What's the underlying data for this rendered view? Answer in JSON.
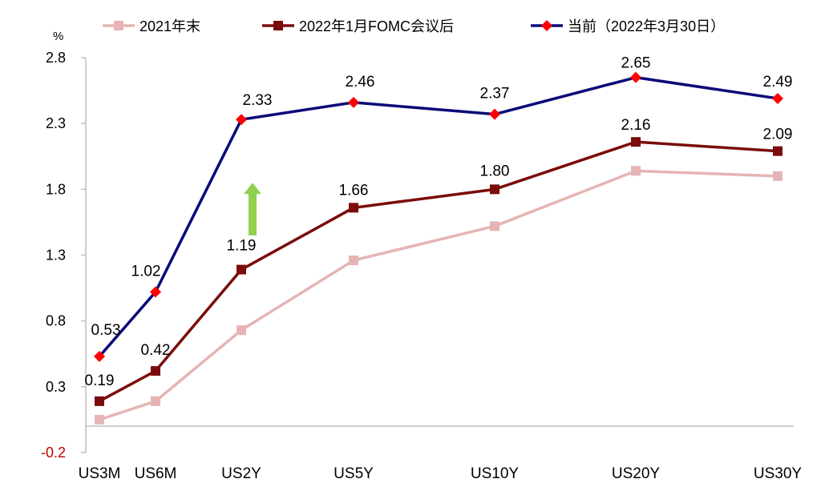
{
  "chart_data": {
    "type": "line",
    "title": "",
    "xlabel": "",
    "ylabel": "%",
    "ylim": [
      -0.2,
      2.8
    ],
    "yticks": [
      "2.8",
      "2.3",
      "1.8",
      "1.3",
      "0.8",
      "0.3",
      "-0.2"
    ],
    "categories": [
      "US3M",
      "US6M",
      "US2Y",
      "US5Y",
      "US10Y",
      "US20Y",
      "US30Y"
    ],
    "legend_position": "top",
    "grid": false,
    "series": [
      {
        "name": "2021年末",
        "color": "#e6b4b4",
        "marker": "square",
        "values": [
          0.05,
          0.19,
          0.73,
          1.26,
          1.52,
          1.94,
          1.9
        ],
        "labels": [
          "",
          "",
          "",
          "",
          "",
          "",
          ""
        ]
      },
      {
        "name": "2022年1月FOMC会议后",
        "color": "#7b0c0c",
        "marker": "square",
        "values": [
          0.19,
          0.42,
          1.19,
          1.66,
          1.8,
          2.16,
          2.09
        ],
        "labels": [
          "0.19",
          "0.42",
          "1.19",
          "1.66",
          "1.80",
          "2.16",
          "2.09"
        ]
      },
      {
        "name": "当前（2022年3月30日）",
        "color": "#0a0a78",
        "marker": "diamond",
        "marker_color": "#ff0000",
        "values": [
          0.53,
          1.02,
          2.33,
          2.46,
          2.37,
          2.65,
          2.49
        ],
        "labels": [
          "0.53",
          "1.02",
          "2.33",
          "2.46",
          "2.37",
          "2.65",
          "2.49"
        ]
      }
    ],
    "annotations": [
      {
        "type": "arrow-up",
        "color": "#92d050",
        "category": "US2Y",
        "from": 1.45,
        "to": 1.85
      }
    ]
  }
}
